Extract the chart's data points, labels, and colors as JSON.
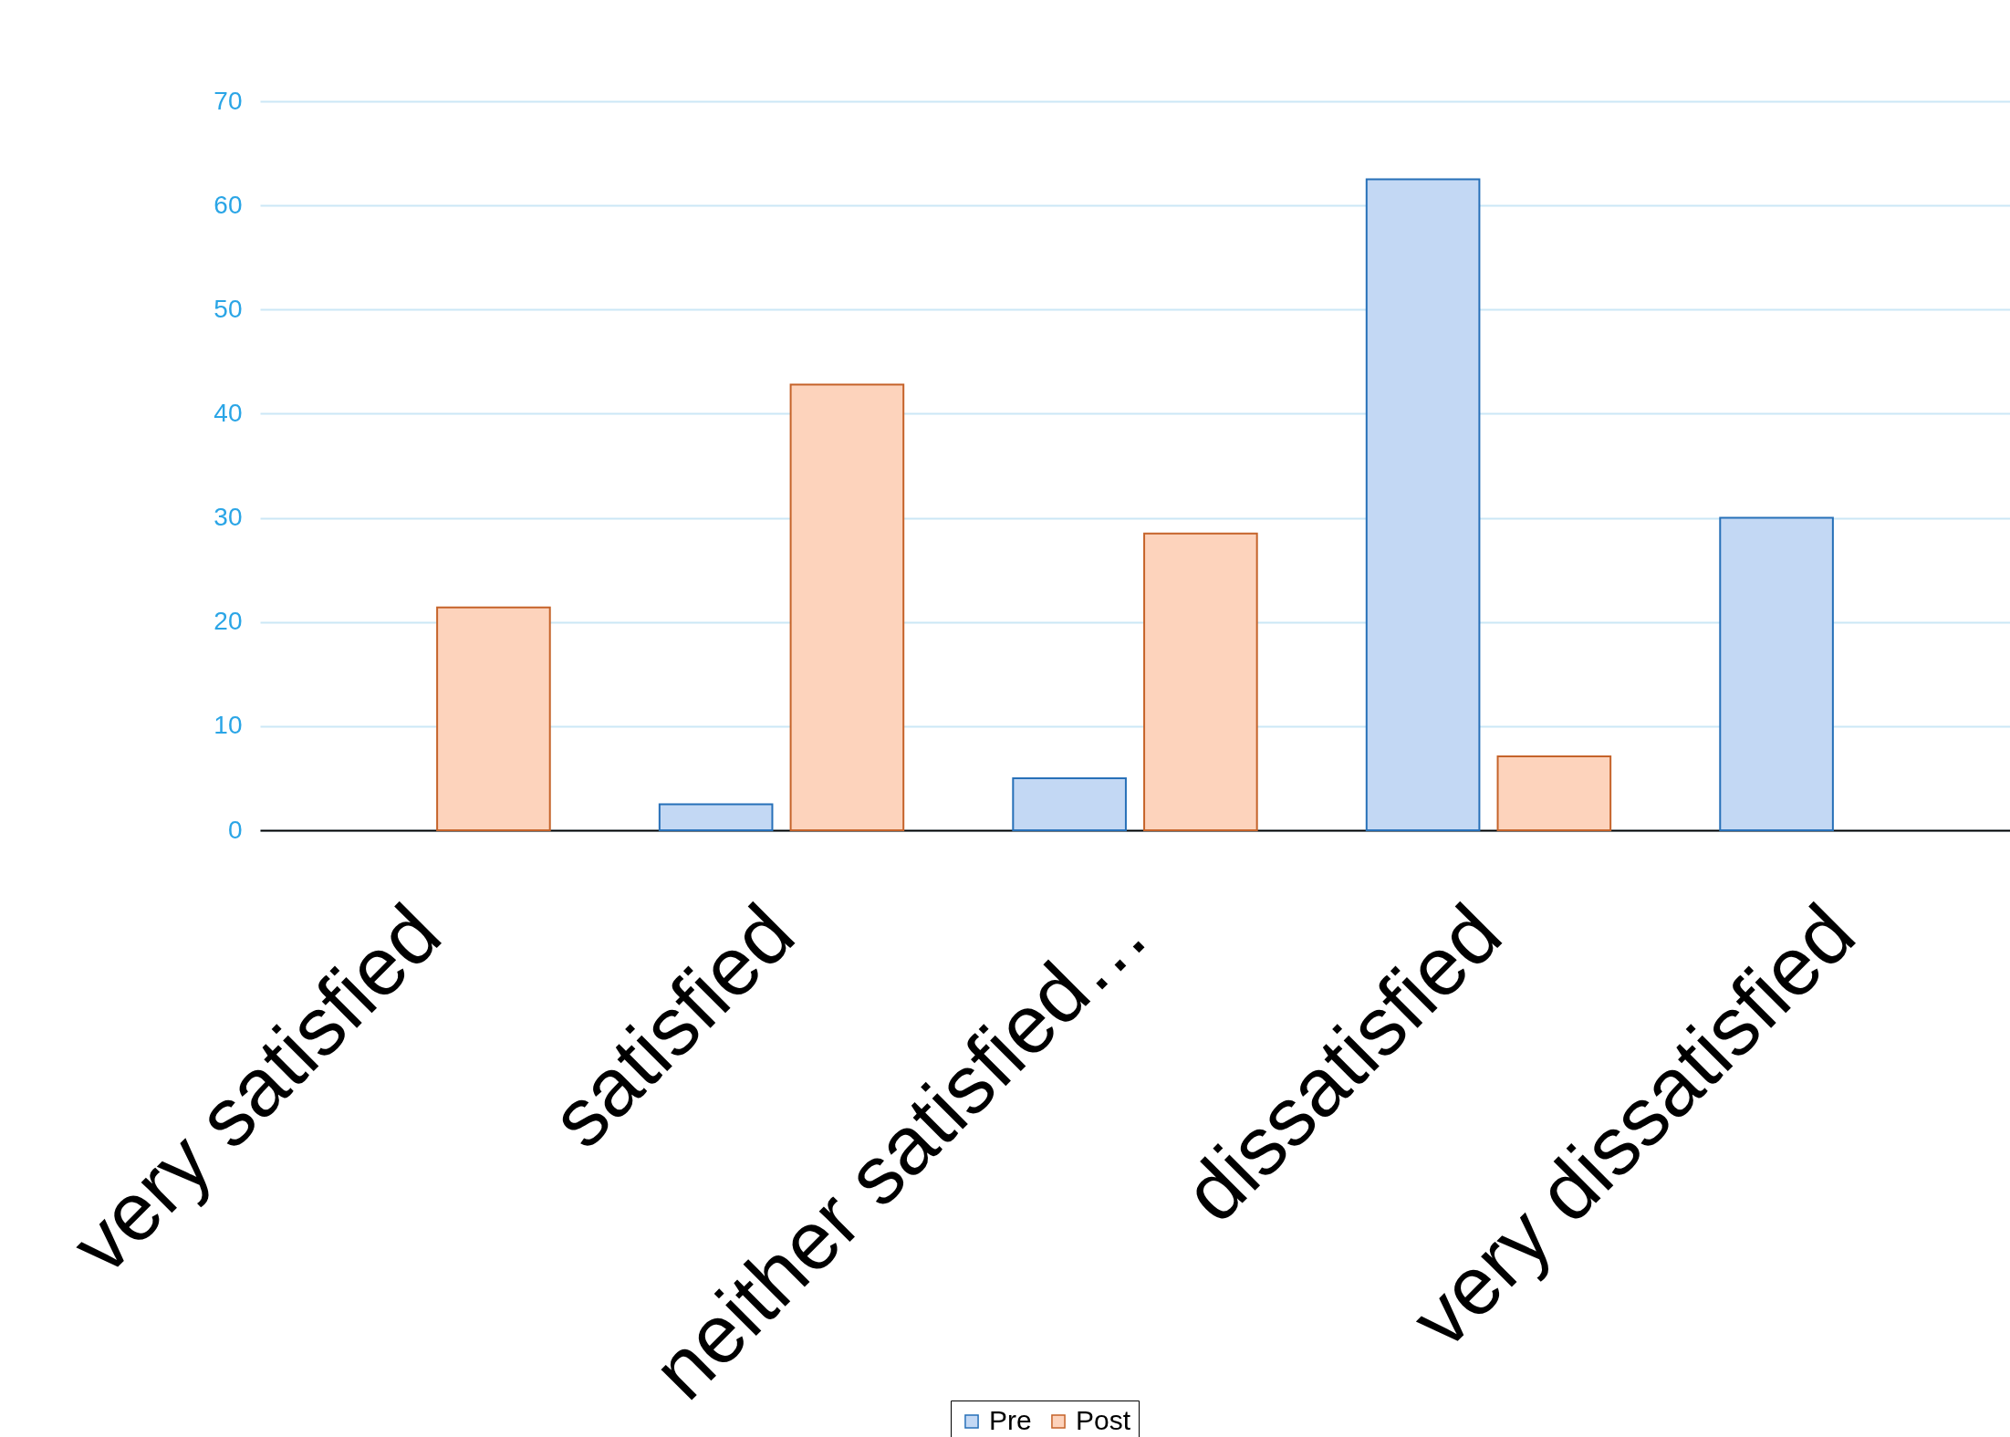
{
  "chart_data": {
    "type": "bar",
    "categories": [
      "very satisfied",
      "satisfied",
      "neither satisfied…",
      "dissatisfied",
      "very dissatisfied"
    ],
    "series": [
      {
        "name": "Pre",
        "color": "#c3d8f4",
        "values": [
          null,
          2.5,
          5,
          62.5,
          30
        ]
      },
      {
        "name": "Post",
        "color": "#fdd3bc",
        "values": [
          21.4,
          42.8,
          28.5,
          7.1,
          null
        ]
      }
    ],
    "ylim": [
      0,
      70
    ],
    "yticks": [
      0,
      10,
      20,
      30,
      40,
      50,
      60,
      70
    ],
    "grid": "y",
    "legend": "bottom"
  }
}
